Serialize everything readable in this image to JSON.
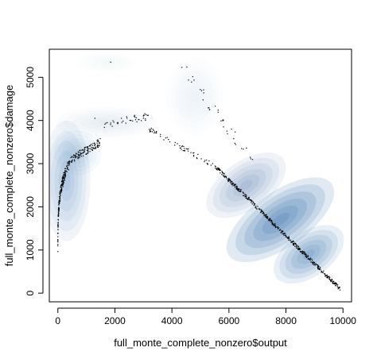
{
  "chart_data": {
    "type": "scatter",
    "title": "",
    "xlabel": "full_monte_complete_nonzero$output",
    "ylabel": "full_monte_complete_nonzero$damage",
    "xlim": [
      -300,
      10300
    ],
    "ylim": [
      -200,
      5650
    ],
    "x_ticks": [
      0,
      2000,
      4000,
      6000,
      8000,
      10000
    ],
    "y_ticks": [
      0,
      1000,
      2000,
      3000,
      4000,
      5000
    ],
    "x_tick_labels": [
      "0",
      "2000",
      "4000",
      "6000",
      "8000",
      "10000"
    ],
    "y_tick_labels": [
      "0",
      "1000",
      "2000",
      "3000",
      "4000",
      "5000"
    ],
    "grid": false,
    "density_color": "#08519c",
    "point_color": "#000000",
    "density_regions": [
      {
        "x": 7800,
        "y": 1700,
        "sx": 1100,
        "sy": 320,
        "angle_deg": -35,
        "weight": 1.0
      },
      {
        "x": 8800,
        "y": 900,
        "sx": 700,
        "sy": 260,
        "angle_deg": -35,
        "weight": 0.8
      },
      {
        "x": 6600,
        "y": 2500,
        "sx": 800,
        "sy": 280,
        "angle_deg": -35,
        "weight": 0.55
      },
      {
        "x": 300,
        "y": 2600,
        "sx": 420,
        "sy": 700,
        "angle_deg": 0,
        "weight": 0.45
      },
      {
        "x": 700,
        "y": 3250,
        "sx": 420,
        "sy": 260,
        "angle_deg": 0,
        "weight": 0.25
      },
      {
        "x": 1700,
        "y": 3950,
        "sx": 900,
        "sy": 180,
        "angle_deg": 0,
        "weight": 0.12
      },
      {
        "x": 4800,
        "y": 4550,
        "sx": 500,
        "sy": 450,
        "angle_deg": 0,
        "weight": 0.08
      },
      {
        "x": 1700,
        "y": 5350,
        "sx": 550,
        "sy": 120,
        "angle_deg": 0,
        "weight": 0.05
      }
    ],
    "point_clusters": [
      {
        "name": "",
        "x_range": [
          0,
          400
        ],
        "y_range": [
          800,
          3000
        ],
        "count": 180,
        "shape": "sqrt-curve"
      },
      {
        "name": "",
        "x_range": [
          400,
          1500
        ],
        "y_range": [
          2900,
          3500
        ],
        "count": 120,
        "shape": "band"
      },
      {
        "name": "",
        "x_range": [
          1500,
          3200
        ],
        "y_range": [
          3800,
          4100
        ],
        "count": 40,
        "shape": "band"
      },
      {
        "name": "",
        "x_range": [
          3200,
          5500
        ],
        "y_range": [
          2950,
          3800
        ],
        "count": 60,
        "shape": "descending"
      },
      {
        "name": "",
        "x_range": [
          5500,
          9900
        ],
        "y_range": [
          100,
          2950
        ],
        "count": 450,
        "shape": "line"
      },
      {
        "name": "",
        "x_range": [
          4400,
          6900
        ],
        "y_range": [
          3000,
          5200
        ],
        "count": 35,
        "shape": "descending-upper"
      }
    ],
    "outlier_points": [
      [
        1850,
        5350
      ],
      [
        4350,
        5230
      ],
      [
        1300,
        4050
      ]
    ]
  }
}
